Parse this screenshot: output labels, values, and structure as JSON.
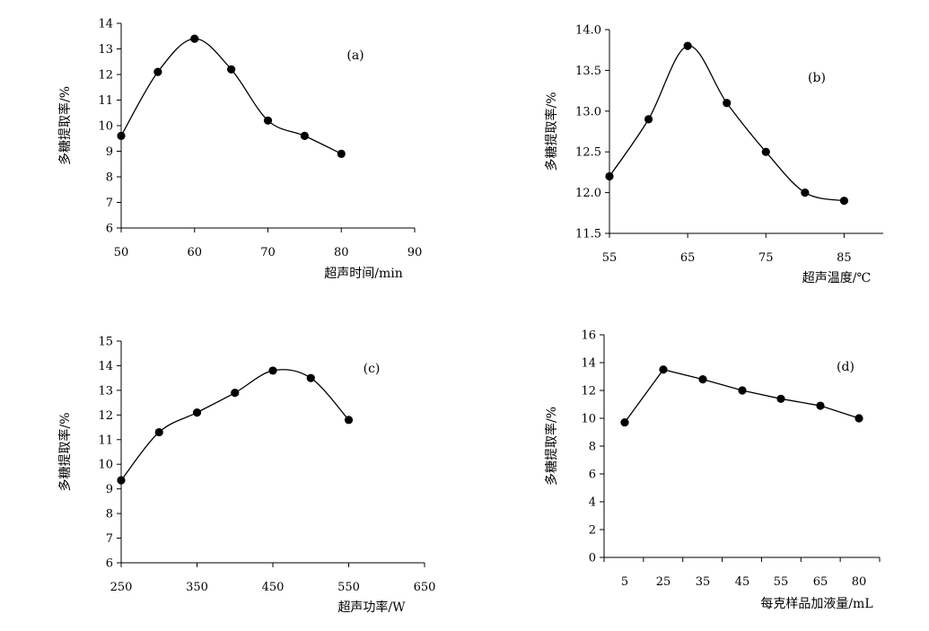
{
  "chart_data": [
    {
      "type": "line",
      "panel_label": "(a)",
      "xlabel": "超声时间/min",
      "ylabel": "多糖提取率/%",
      "xlim": [
        50,
        90
      ],
      "ylim": [
        6,
        14
      ],
      "xticks": [
        "50",
        "60",
        "70",
        "80",
        "90"
      ],
      "yticks": [
        "6",
        "7",
        "8",
        "9",
        "10",
        "11",
        "12",
        "13",
        "14"
      ],
      "x": [
        50,
        55,
        60,
        65,
        70,
        75,
        80
      ],
      "y": [
        9.6,
        12.1,
        13.4,
        12.2,
        10.2,
        9.6,
        8.9
      ],
      "grid": false,
      "smooth": true
    },
    {
      "type": "line",
      "panel_label": "(b)",
      "xlabel": "超声温度/℃",
      "ylabel": "多糖提取率/%",
      "xlim": [
        55,
        90
      ],
      "ylim": [
        11.5,
        14.0
      ],
      "xticks": [
        "55",
        "65",
        "75",
        "85"
      ],
      "yticks": [
        "11.5",
        "12.0",
        "12.5",
        "13.0",
        "13.5",
        "14.0"
      ],
      "x": [
        55,
        60,
        65,
        70,
        75,
        80,
        85
      ],
      "y": [
        12.2,
        12.9,
        13.8,
        13.1,
        12.5,
        12.0,
        11.9
      ],
      "grid": false,
      "smooth": true
    },
    {
      "type": "line",
      "panel_label": "(c)",
      "xlabel": "超声功率/W",
      "ylabel": "多糖提取率/%",
      "xlim": [
        250,
        650
      ],
      "ylim": [
        6,
        15
      ],
      "xticks": [
        "250",
        "350",
        "450",
        "550",
        "650"
      ],
      "yticks": [
        "6",
        "7",
        "8",
        "9",
        "10",
        "11",
        "12",
        "13",
        "14",
        "15"
      ],
      "x": [
        250,
        300,
        350,
        400,
        450,
        500,
        550
      ],
      "y": [
        9.35,
        11.3,
        12.1,
        12.9,
        13.8,
        13.5,
        11.8
      ],
      "grid": false,
      "smooth": true
    },
    {
      "type": "line",
      "panel_label": "(d)",
      "xlabel": "每克样品加液量/mL",
      "ylabel": "多糖提取率/%",
      "categories": [
        "5",
        "25",
        "35",
        "45",
        "55",
        "65",
        "80"
      ],
      "ylim": [
        0,
        16
      ],
      "yticks": [
        "0",
        "2",
        "4",
        "6",
        "8",
        "10",
        "12",
        "14",
        "16"
      ],
      "values": [
        9.7,
        13.5,
        12.8,
        12.0,
        11.4,
        10.9,
        10.0
      ],
      "grid": false,
      "smooth": false
    }
  ]
}
